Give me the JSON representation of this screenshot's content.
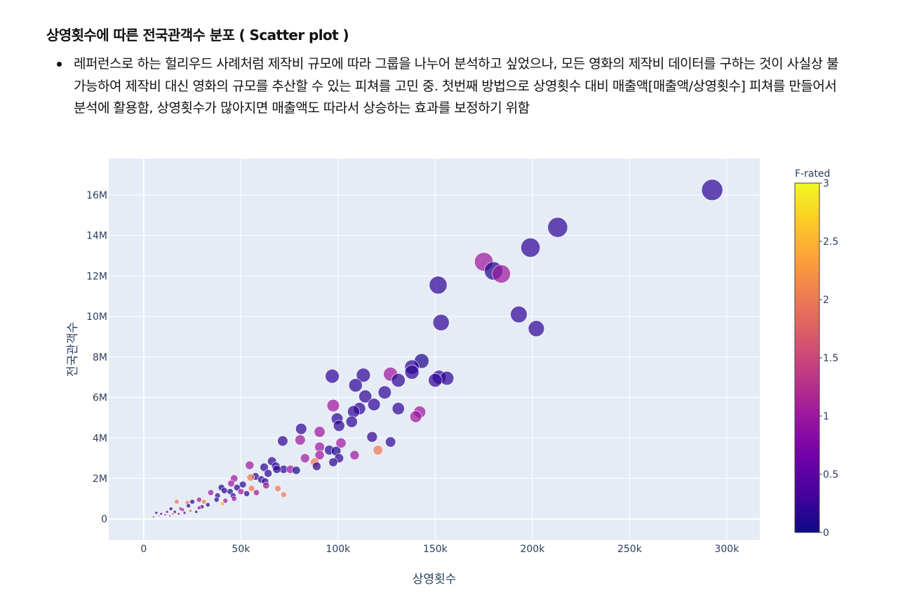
{
  "heading": "상영횟수에 따른 전국관객수 분포 ( Scatter plot )",
  "bullets": [
    "레퍼런스로 하는 헐리우드 사례처럼 제작비 규모에 따라 그룹을 나누어 분석하고 싶었으나, 모든 영화의 제작비 데이터를 구하는 것이 사실상 불가능하여 제작비 대신 영화의 규모를 추산할 수 있는 피쳐를 고민 중. 첫번째 방법으로 상영횟수 대비 매출액[매출액/상영횟수] 피쳐를 만들어서 분석에 활용함, 상영횟수가 많아지면 매출액도 따라서 상승하는 효과를 보정하기 위함"
  ],
  "colors": {
    "plot_bg": "#e5ecf6",
    "grid": "#ffffff",
    "text": "#2a3f5f",
    "colorscale": [
      "#0d0887",
      "#46039f",
      "#7201a8",
      "#9c179e",
      "#bd3786",
      "#d8576b",
      "#ed7953",
      "#fb9f3a",
      "#fdca26",
      "#f0f921"
    ]
  },
  "chart_data": {
    "type": "scatter",
    "title": "",
    "xlabel": "상영횟수",
    "ylabel": "전국관객수",
    "xlim": [
      -18000,
      317000
    ],
    "ylim": [
      -1050000,
      17800000
    ],
    "x_ticks": [
      0,
      50000,
      100000,
      150000,
      200000,
      250000,
      300000
    ],
    "x_tick_labels": [
      "0",
      "50k",
      "100k",
      "150k",
      "200k",
      "250k",
      "300k"
    ],
    "y_ticks": [
      0,
      2000000,
      4000000,
      6000000,
      8000000,
      10000000,
      12000000,
      14000000,
      16000000
    ],
    "y_tick_labels": [
      "0",
      "2M",
      "4M",
      "6M",
      "8M",
      "10M",
      "12M",
      "14M",
      "16M"
    ],
    "grid": true,
    "color_field": "F-rated",
    "color_range": [
      0,
      3
    ],
    "colorbar_title": "F-rated",
    "colorbar_ticks": [
      0,
      0.5,
      1,
      1.5,
      2,
      2.5,
      3
    ],
    "colorbar_tick_labels": [
      "0",
      "0.5",
      "1",
      "1.5",
      "2",
      "2.5",
      "3"
    ],
    "points": [
      {
        "x": 292500,
        "y": 16250000,
        "c": 0.2
      },
      {
        "x": 213000,
        "y": 14400000,
        "c": 0.2
      },
      {
        "x": 199000,
        "y": 13400000,
        "c": 0.2
      },
      {
        "x": 175000,
        "y": 12700000,
        "c": 1.0
      },
      {
        "x": 180000,
        "y": 12250000,
        "c": 0.1
      },
      {
        "x": 184000,
        "y": 12100000,
        "c": 1.0
      },
      {
        "x": 151500,
        "y": 11550000,
        "c": 0.2
      },
      {
        "x": 193000,
        "y": 10100000,
        "c": 0.2
      },
      {
        "x": 202000,
        "y": 9400000,
        "c": 0.2
      },
      {
        "x": 153000,
        "y": 9700000,
        "c": 0.2
      },
      {
        "x": 143000,
        "y": 7800000,
        "c": 0.1
      },
      {
        "x": 138000,
        "y": 7500000,
        "c": 0.2
      },
      {
        "x": 138000,
        "y": 7250000,
        "c": 0.2
      },
      {
        "x": 127000,
        "y": 7150000,
        "c": 1.0
      },
      {
        "x": 113000,
        "y": 7100000,
        "c": 0.2
      },
      {
        "x": 97000,
        "y": 7050000,
        "c": 0.2
      },
      {
        "x": 131000,
        "y": 6850000,
        "c": 0.2
      },
      {
        "x": 150000,
        "y": 6850000,
        "c": 0.2
      },
      {
        "x": 152000,
        "y": 7000000,
        "c": 0.2
      },
      {
        "x": 156000,
        "y": 6950000,
        "c": 0.2
      },
      {
        "x": 109000,
        "y": 6600000,
        "c": 0.2
      },
      {
        "x": 124000,
        "y": 6250000,
        "c": 0.2
      },
      {
        "x": 114000,
        "y": 6050000,
        "c": 0.2
      },
      {
        "x": 118500,
        "y": 5650000,
        "c": 0.2
      },
      {
        "x": 97500,
        "y": 5600000,
        "c": 1.0
      },
      {
        "x": 108000,
        "y": 5300000,
        "c": 0.2
      },
      {
        "x": 111000,
        "y": 5450000,
        "c": 0.2
      },
      {
        "x": 131000,
        "y": 5450000,
        "c": 0.2
      },
      {
        "x": 142000,
        "y": 5280000,
        "c": 1.0
      },
      {
        "x": 140000,
        "y": 5050000,
        "c": 1.0
      },
      {
        "x": 99500,
        "y": 4950000,
        "c": 0.2
      },
      {
        "x": 107000,
        "y": 4800000,
        "c": 0.2
      },
      {
        "x": 100500,
        "y": 4600000,
        "c": 0.2
      },
      {
        "x": 81000,
        "y": 4450000,
        "c": 0.2
      },
      {
        "x": 90500,
        "y": 4300000,
        "c": 1.0
      },
      {
        "x": 117500,
        "y": 4050000,
        "c": 0.2
      },
      {
        "x": 127000,
        "y": 3800000,
        "c": 0.2
      },
      {
        "x": 71500,
        "y": 3850000,
        "c": 0.2
      },
      {
        "x": 80500,
        "y": 3900000,
        "c": 1.0
      },
      {
        "x": 101500,
        "y": 3750000,
        "c": 1.0
      },
      {
        "x": 90500,
        "y": 3550000,
        "c": 1.0
      },
      {
        "x": 95500,
        "y": 3400000,
        "c": 0.2
      },
      {
        "x": 99000,
        "y": 3350000,
        "c": 0.1
      },
      {
        "x": 120500,
        "y": 3400000,
        "c": 2.0
      },
      {
        "x": 90500,
        "y": 3150000,
        "c": 1.0
      },
      {
        "x": 108500,
        "y": 3150000,
        "c": 1.0
      },
      {
        "x": 100500,
        "y": 3000000,
        "c": 0.2
      },
      {
        "x": 83000,
        "y": 3000000,
        "c": 1.0
      },
      {
        "x": 88000,
        "y": 2800000,
        "c": 2.0
      },
      {
        "x": 97500,
        "y": 2800000,
        "c": 0.2
      },
      {
        "x": 89000,
        "y": 2600000,
        "c": 0.2
      },
      {
        "x": 54500,
        "y": 2650000,
        "c": 1.0
      },
      {
        "x": 62000,
        "y": 2550000,
        "c": 0.2
      },
      {
        "x": 66000,
        "y": 2850000,
        "c": 0.2
      },
      {
        "x": 68000,
        "y": 2600000,
        "c": 0.2
      },
      {
        "x": 72000,
        "y": 2450000,
        "c": 0.2
      },
      {
        "x": 75500,
        "y": 2450000,
        "c": 1.0
      },
      {
        "x": 78500,
        "y": 2400000,
        "c": 0.1
      },
      {
        "x": 68500,
        "y": 2450000,
        "c": 0.2
      },
      {
        "x": 64000,
        "y": 2250000,
        "c": 0.2
      },
      {
        "x": 57500,
        "y": 2100000,
        "c": 0.2
      },
      {
        "x": 55000,
        "y": 2050000,
        "c": 2.0
      },
      {
        "x": 46500,
        "y": 2000000,
        "c": 1.0
      },
      {
        "x": 60500,
        "y": 1950000,
        "c": 0.2
      },
      {
        "x": 62500,
        "y": 1850000,
        "c": 0.2
      },
      {
        "x": 63000,
        "y": 1650000,
        "c": 1.0
      },
      {
        "x": 45000,
        "y": 1750000,
        "c": 1.0
      },
      {
        "x": 51000,
        "y": 1700000,
        "c": 0.2
      },
      {
        "x": 55500,
        "y": 1500000,
        "c": 2.0
      },
      {
        "x": 48000,
        "y": 1550000,
        "c": 0.2
      },
      {
        "x": 40000,
        "y": 1550000,
        "c": 0.2
      },
      {
        "x": 41500,
        "y": 1400000,
        "c": 0.2
      },
      {
        "x": 44500,
        "y": 1350000,
        "c": 0.2
      },
      {
        "x": 50000,
        "y": 1350000,
        "c": 1.0
      },
      {
        "x": 53000,
        "y": 1250000,
        "c": 0.2
      },
      {
        "x": 58000,
        "y": 1300000,
        "c": 1.0
      },
      {
        "x": 69000,
        "y": 1500000,
        "c": 2.0
      },
      {
        "x": 72000,
        "y": 1200000,
        "c": 2.0
      },
      {
        "x": 34500,
        "y": 1300000,
        "c": 1.0
      },
      {
        "x": 38000,
        "y": 1150000,
        "c": 0.2
      },
      {
        "x": 46000,
        "y": 1150000,
        "c": 0.2
      },
      {
        "x": 37500,
        "y": 950000,
        "c": 0.2
      },
      {
        "x": 42000,
        "y": 900000,
        "c": 1.0
      },
      {
        "x": 46500,
        "y": 1000000,
        "c": 1.0
      },
      {
        "x": 31000,
        "y": 850000,
        "c": 2.0
      },
      {
        "x": 40500,
        "y": 750000,
        "c": 2.5
      },
      {
        "x": 33000,
        "y": 700000,
        "c": 0.2
      },
      {
        "x": 28500,
        "y": 950000,
        "c": 1.0
      },
      {
        "x": 25000,
        "y": 850000,
        "c": 0.2
      },
      {
        "x": 22500,
        "y": 800000,
        "c": 2.0
      },
      {
        "x": 17000,
        "y": 850000,
        "c": 2.0
      },
      {
        "x": 23000,
        "y": 650000,
        "c": 0.2
      },
      {
        "x": 28500,
        "y": 550000,
        "c": 1.0
      },
      {
        "x": 30000,
        "y": 600000,
        "c": 0.2
      },
      {
        "x": 19000,
        "y": 500000,
        "c": 1.0
      },
      {
        "x": 14000,
        "y": 500000,
        "c": 0.2
      },
      {
        "x": 12000,
        "y": 350000,
        "c": 1.0
      },
      {
        "x": 16000,
        "y": 350000,
        "c": 0.2
      },
      {
        "x": 20000,
        "y": 450000,
        "c": 1.0
      },
      {
        "x": 24000,
        "y": 400000,
        "c": 2.0
      },
      {
        "x": 27000,
        "y": 350000,
        "c": 0.2
      },
      {
        "x": 9000,
        "y": 250000,
        "c": 0.2
      },
      {
        "x": 6500,
        "y": 300000,
        "c": 0.1
      },
      {
        "x": 11000,
        "y": 200000,
        "c": 1.0
      },
      {
        "x": 15000,
        "y": 250000,
        "c": 2.0
      },
      {
        "x": 18000,
        "y": 250000,
        "c": 1.0
      },
      {
        "x": 8000,
        "y": 150000,
        "c": 2.0
      },
      {
        "x": 5000,
        "y": 100000,
        "c": 1.0
      },
      {
        "x": 21000,
        "y": 300000,
        "c": 0.2
      },
      {
        "x": 13500,
        "y": 150000,
        "c": 1.0
      }
    ]
  }
}
